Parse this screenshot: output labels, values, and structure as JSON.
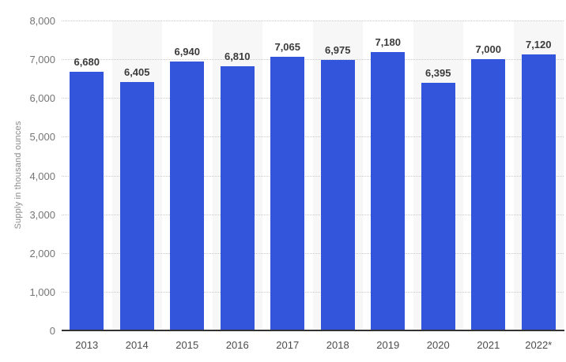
{
  "chart_data": {
    "type": "bar",
    "title": "",
    "xlabel": "",
    "ylabel": "Supply in thousand ounces",
    "categories": [
      "2013",
      "2014",
      "2015",
      "2016",
      "2017",
      "2018",
      "2019",
      "2020",
      "2021",
      "2022*"
    ],
    "values": [
      6680,
      6405,
      6940,
      6810,
      7065,
      6975,
      7180,
      6395,
      7000,
      7120
    ],
    "value_labels": [
      "6,680",
      "6,405",
      "6,940",
      "6,810",
      "7,065",
      "6,975",
      "7,180",
      "6,395",
      "7,000",
      "7,120"
    ],
    "ylim": [
      0,
      8000
    ],
    "ytick_step": 1000,
    "ytick_labels": [
      "0",
      "1,000",
      "2,000",
      "3,000",
      "4,000",
      "5,000",
      "6,000",
      "7,000",
      "8,000"
    ],
    "grid": "horizontal-dotted",
    "legend": "none",
    "colors": {
      "bar": "#3355dc",
      "column_stripe": "#f7f7f7",
      "value_label": "#3b3b3b",
      "y_tick": "#757575",
      "x_tick": "#4c4c4e",
      "gridline": "#c9c9c9",
      "baseline": "#333333",
      "axis_title": "#8a8a8a",
      "background": "#ffffff"
    }
  }
}
